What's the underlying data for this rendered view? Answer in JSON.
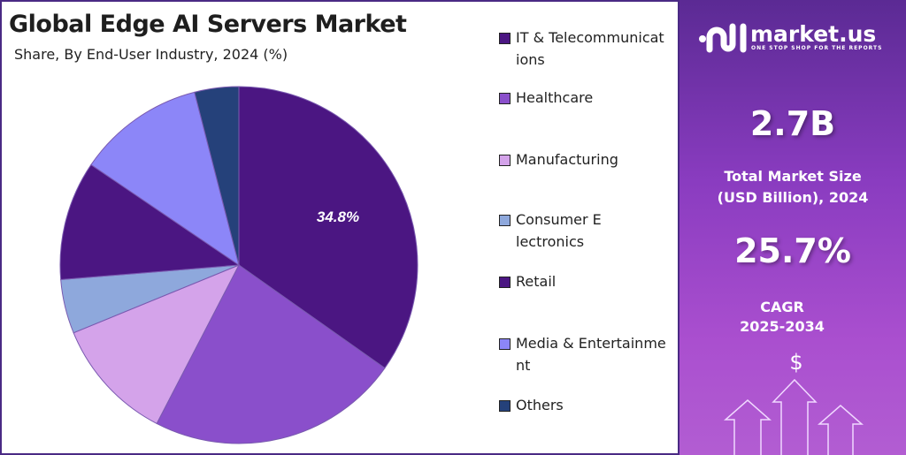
{
  "chart_data": {
    "type": "pie",
    "title": "Global Edge AI Servers Market",
    "subtitle": "Share, By End-User Industry, 2024 (%)",
    "categories": [
      "IT & Telecommunications",
      "Healthcare",
      "Manufacturing",
      "Consumer Electronics",
      "Retail",
      "Media & Entertainment",
      "Others"
    ],
    "values": [
      34.8,
      22.8,
      11.2,
      4.9,
      10.8,
      11.5,
      4.0
    ],
    "colors": [
      "#4b1682",
      "#8a4fcb",
      "#d4a3ea",
      "#8ea8dc",
      "#4b1682",
      "#8c86f8",
      "#25417a"
    ],
    "data_labels": [
      "34.8%"
    ],
    "legend_position": "right"
  },
  "sidebar": {
    "brand": "market.us",
    "tagline": "ONE STOP SHOP FOR THE REPORTS",
    "market_size": "2.7B",
    "market_size_label_1": "Total Market Size",
    "market_size_label_2": "(USD Billion), 2024",
    "cagr": "25.7%",
    "cagr_label": "CAGR",
    "cagr_period": "2025-2034",
    "currency_symbol": "$"
  }
}
